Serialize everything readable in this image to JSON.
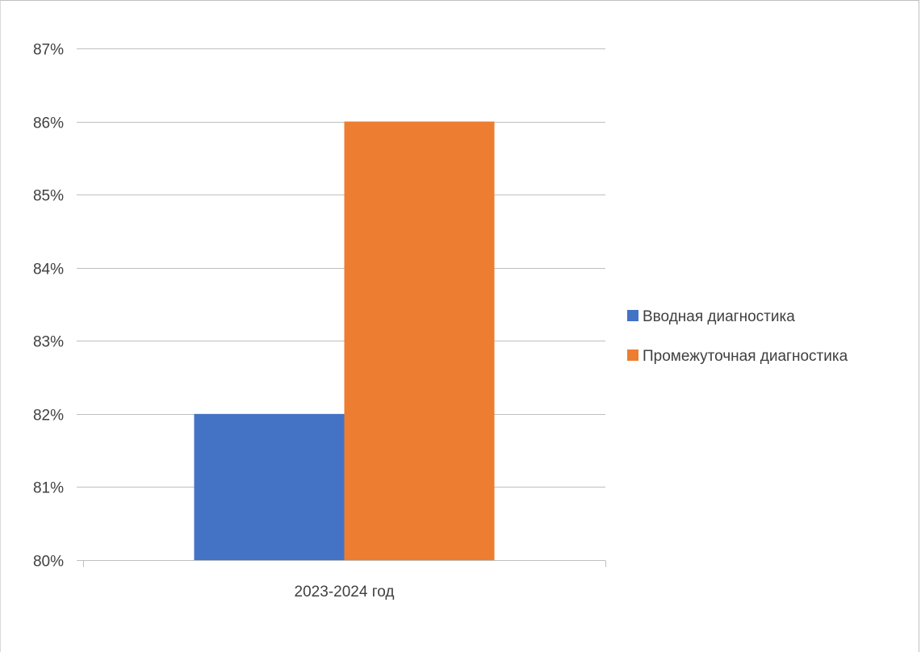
{
  "chart_data": {
    "type": "bar",
    "categories": [
      "2023-2024 год"
    ],
    "series": [
      {
        "name": "Вводная диагностика",
        "values": [
          82
        ],
        "color": "#4472c4"
      },
      {
        "name": "Промежуточная диагностика",
        "values": [
          86
        ],
        "color": "#ed7d31"
      }
    ],
    "ylim": [
      80,
      87
    ],
    "yticks": [
      {
        "value": 80,
        "label": "80%"
      },
      {
        "value": 81,
        "label": "81%"
      },
      {
        "value": 82,
        "label": "82%"
      },
      {
        "value": 83,
        "label": "83%"
      },
      {
        "value": 84,
        "label": "84%"
      },
      {
        "value": 85,
        "label": "85%"
      },
      {
        "value": 86,
        "label": "86%"
      },
      {
        "value": 87,
        "label": "87%"
      }
    ],
    "grid": true,
    "legend": "right",
    "gridline_color": "#bfbfbf"
  }
}
